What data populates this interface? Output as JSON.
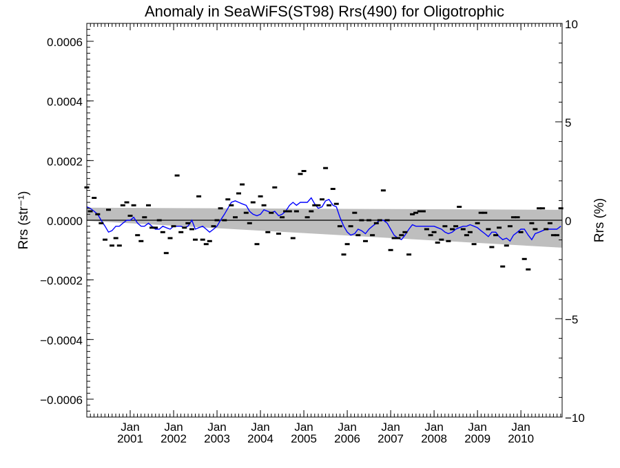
{
  "chart_data": {
    "type": "scatter",
    "title": "Anomaly in SeaWiFS(ST98) Rrs(490) for Oligotrophic",
    "ylabel_left": "Rrs (str⁻¹)",
    "ylabel_right": "Rrs (%)",
    "xlabel": "",
    "xlim": [
      2000.0,
      2010.95
    ],
    "ylim": [
      -0.00066,
      0.00066
    ],
    "ylim_right": [
      -10,
      10
    ],
    "grid": false,
    "x_ticks": [
      {
        "x": 2001.0,
        "line1": "Jan",
        "line2": "2001"
      },
      {
        "x": 2002.0,
        "line1": "Jan",
        "line2": "2002"
      },
      {
        "x": 2003.0,
        "line1": "Jan",
        "line2": "2003"
      },
      {
        "x": 2004.0,
        "line1": "Jan",
        "line2": "2004"
      },
      {
        "x": 2005.0,
        "line1": "Jan",
        "line2": "2005"
      },
      {
        "x": 2006.0,
        "line1": "Jan",
        "line2": "2006"
      },
      {
        "x": 2007.0,
        "line1": "Jan",
        "line2": "2007"
      },
      {
        "x": 2008.0,
        "line1": "Jan",
        "line2": "2008"
      },
      {
        "x": 2009.0,
        "line1": "Jan",
        "line2": "2009"
      },
      {
        "x": 2010.0,
        "line1": "Jan",
        "line2": "2010"
      }
    ],
    "y_ticks_left": [
      {
        "value": 0.0006,
        "label": "0.0006"
      },
      {
        "value": 0.0004,
        "label": "0.0004"
      },
      {
        "value": 0.0002,
        "label": "0.0002"
      },
      {
        "value": 0.0,
        "label": "0.0000"
      },
      {
        "value": -0.0002,
        "label": "−0.0002"
      },
      {
        "value": -0.0004,
        "label": "−0.0004"
      },
      {
        "value": -0.0006,
        "label": "−0.0006"
      }
    ],
    "y_ticks_right": [
      {
        "value": 10,
        "label": "10"
      },
      {
        "value": 5,
        "label": "5"
      },
      {
        "value": 0,
        "label": "0"
      },
      {
        "value": -5,
        "label": "−5"
      },
      {
        "value": -10,
        "label": "−10"
      }
    ],
    "zero_line": 0.0,
    "band": {
      "color": "#bebebe",
      "x": [
        2000.0,
        2010.95
      ],
      "upper": [
        4.2e-05,
        3.5e-05
      ],
      "lower": [
        -2e-06,
        -9.2e-05
      ]
    },
    "series": [
      {
        "kind": "points",
        "color": "#000000",
        "points": [
          [
            2000.0,
            0.00011
          ],
          [
            2000.08,
            3e-05
          ],
          [
            2000.17,
            7.5e-05
          ],
          [
            2000.25,
            2e-05
          ],
          [
            2000.33,
            -1e-05
          ],
          [
            2000.42,
            -6.5e-05
          ],
          [
            2000.5,
            3.5e-05
          ],
          [
            2000.58,
            -8.5e-05
          ],
          [
            2000.67,
            -6e-05
          ],
          [
            2000.75,
            -8.5e-05
          ],
          [
            2000.83,
            5e-05
          ],
          [
            2000.92,
            6e-05
          ],
          [
            2001.0,
            1.5e-05
          ],
          [
            2001.08,
            5e-05
          ],
          [
            2001.17,
            -5e-05
          ],
          [
            2001.25,
            -7e-05
          ],
          [
            2001.33,
            1e-05
          ],
          [
            2001.42,
            5e-05
          ],
          [
            2001.5,
            -2.5e-05
          ],
          [
            2001.58,
            -2.5e-05
          ],
          [
            2001.67,
            0.0
          ],
          [
            2001.75,
            -4e-05
          ],
          [
            2001.83,
            -0.00011
          ],
          [
            2001.92,
            -6e-05
          ],
          [
            2002.0,
            -2e-05
          ],
          [
            2002.08,
            0.00015
          ],
          [
            2002.17,
            -4e-05
          ],
          [
            2002.25,
            -2.5e-05
          ],
          [
            2002.33,
            -1e-05
          ],
          [
            2002.42,
            -3e-05
          ],
          [
            2002.5,
            -6.5e-05
          ],
          [
            2002.58,
            8e-05
          ],
          [
            2002.67,
            -6.5e-05
          ],
          [
            2002.75,
            -8e-05
          ],
          [
            2002.83,
            -7e-05
          ],
          [
            2002.92,
            -2e-05
          ],
          [
            2003.0,
            0.0
          ],
          [
            2003.08,
            4e-05
          ],
          [
            2003.17,
            0.0
          ],
          [
            2003.25,
            7e-05
          ],
          [
            2003.33,
            5e-05
          ],
          [
            2003.42,
            1e-05
          ],
          [
            2003.5,
            9e-05
          ],
          [
            2003.58,
            0.00012
          ],
          [
            2003.67,
            2.5e-05
          ],
          [
            2003.75,
            -1e-05
          ],
          [
            2003.83,
            6e-05
          ],
          [
            2003.92,
            -8e-05
          ],
          [
            2004.0,
            8e-05
          ],
          [
            2004.08,
            5e-05
          ],
          [
            2004.17,
            -4e-05
          ],
          [
            2004.25,
            2.5e-05
          ],
          [
            2004.33,
            0.00011
          ],
          [
            2004.42,
            -4.5e-05
          ],
          [
            2004.5,
            1e-05
          ],
          [
            2004.58,
            3e-05
          ],
          [
            2004.67,
            3e-05
          ],
          [
            2004.75,
            -6e-05
          ],
          [
            2004.83,
            3e-05
          ],
          [
            2004.92,
            0.000155
          ],
          [
            2005.0,
            0.000165
          ],
          [
            2005.08,
            1e-05
          ],
          [
            2005.17,
            3e-05
          ],
          [
            2005.25,
            5e-05
          ],
          [
            2005.33,
            5e-05
          ],
          [
            2005.42,
            7e-05
          ],
          [
            2005.5,
            0.000175
          ],
          [
            2005.58,
            5e-05
          ],
          [
            2005.67,
            0.000105
          ],
          [
            2005.75,
            5.5e-05
          ],
          [
            2005.83,
            -2e-05
          ],
          [
            2005.92,
            -0.000115
          ],
          [
            2006.0,
            -8e-05
          ],
          [
            2006.08,
            -2e-05
          ],
          [
            2006.17,
            2.5e-05
          ],
          [
            2006.25,
            -5e-05
          ],
          [
            2006.33,
            0.0
          ],
          [
            2006.42,
            -7e-05
          ],
          [
            2006.5,
            0.0
          ],
          [
            2006.58,
            -5e-05
          ],
          [
            2006.67,
            -1e-05
          ],
          [
            2006.75,
            0.0
          ],
          [
            2006.83,
            0.0001
          ],
          [
            2006.92,
            0.0
          ],
          [
            2007.0,
            -0.0001
          ],
          [
            2007.08,
            -6e-05
          ],
          [
            2007.17,
            -6e-05
          ],
          [
            2007.25,
            -5e-05
          ],
          [
            2007.33,
            -4e-05
          ],
          [
            2007.42,
            -0.000115
          ],
          [
            2007.5,
            2e-05
          ],
          [
            2007.58,
            2.5e-05
          ],
          [
            2007.67,
            3e-05
          ],
          [
            2007.75,
            3e-05
          ],
          [
            2007.83,
            -3e-05
          ],
          [
            2007.92,
            -5e-05
          ],
          [
            2008.0,
            -4e-05
          ],
          [
            2008.08,
            -7.5e-05
          ],
          [
            2008.17,
            -6.5e-05
          ],
          [
            2008.25,
            -2e-05
          ],
          [
            2008.33,
            -7e-05
          ],
          [
            2008.42,
            -3e-05
          ],
          [
            2008.5,
            -2e-05
          ],
          [
            2008.58,
            4.5e-05
          ],
          [
            2008.67,
            -3e-05
          ],
          [
            2008.75,
            -5e-05
          ],
          [
            2008.83,
            -4e-05
          ],
          [
            2008.92,
            -8e-05
          ],
          [
            2009.0,
            -1e-05
          ],
          [
            2009.08,
            2.5e-05
          ],
          [
            2009.17,
            2.5e-05
          ],
          [
            2009.25,
            -3e-05
          ],
          [
            2009.33,
            -9e-05
          ],
          [
            2009.42,
            -5e-05
          ],
          [
            2009.5,
            -2.5e-05
          ],
          [
            2009.58,
            -0.000155
          ],
          [
            2009.67,
            -8.5e-05
          ],
          [
            2009.75,
            -2e-05
          ],
          [
            2009.83,
            1e-05
          ],
          [
            2009.92,
            1e-05
          ],
          [
            2010.0,
            -4e-05
          ],
          [
            2010.08,
            -0.00013
          ],
          [
            2010.17,
            -0.000165
          ],
          [
            2010.25,
            -1e-05
          ],
          [
            2010.33,
            -3e-05
          ],
          [
            2010.42,
            4e-05
          ],
          [
            2010.5,
            4e-05
          ],
          [
            2010.58,
            -3e-05
          ],
          [
            2010.67,
            -1e-05
          ],
          [
            2010.75,
            -5e-05
          ],
          [
            2010.83,
            -5e-05
          ],
          [
            2010.92,
            4e-05
          ]
        ]
      },
      {
        "kind": "line",
        "color": "#0000ff",
        "points": [
          [
            2000.0,
            4.5e-05
          ],
          [
            2000.08,
            4e-05
          ],
          [
            2000.17,
            3e-05
          ],
          [
            2000.25,
            2e-05
          ],
          [
            2000.33,
            0.0
          ],
          [
            2000.42,
            -2e-05
          ],
          [
            2000.5,
            -4e-05
          ],
          [
            2000.58,
            -3.5e-05
          ],
          [
            2000.67,
            -2e-05
          ],
          [
            2000.75,
            -2e-05
          ],
          [
            2000.83,
            -1e-05
          ],
          [
            2000.92,
            0.0
          ],
          [
            2001.0,
            0.0
          ],
          [
            2001.08,
            1e-05
          ],
          [
            2001.17,
            -1e-05
          ],
          [
            2001.25,
            -2e-05
          ],
          [
            2001.33,
            -2e-05
          ],
          [
            2001.42,
            -1e-05
          ],
          [
            2001.5,
            -2e-05
          ],
          [
            2001.58,
            -3e-05
          ],
          [
            2001.67,
            -3e-05
          ],
          [
            2001.75,
            -2e-05
          ],
          [
            2001.83,
            -2.5e-05
          ],
          [
            2001.92,
            -3e-05
          ],
          [
            2002.0,
            -2e-05
          ],
          [
            2002.08,
            -2e-05
          ],
          [
            2002.17,
            -2e-05
          ],
          [
            2002.25,
            -2.5e-05
          ],
          [
            2002.33,
            -2e-05
          ],
          [
            2002.42,
            0.0
          ],
          [
            2002.5,
            -3e-05
          ],
          [
            2002.58,
            -2.5e-05
          ],
          [
            2002.67,
            -2e-05
          ],
          [
            2002.75,
            -3e-05
          ],
          [
            2002.83,
            -4e-05
          ],
          [
            2002.92,
            -3e-05
          ],
          [
            2003.0,
            -2e-05
          ],
          [
            2003.08,
            0.0
          ],
          [
            2003.17,
            2e-05
          ],
          [
            2003.25,
            4e-05
          ],
          [
            2003.33,
            6e-05
          ],
          [
            2003.42,
            6.5e-05
          ],
          [
            2003.5,
            6e-05
          ],
          [
            2003.58,
            5.5e-05
          ],
          [
            2003.67,
            5e-05
          ],
          [
            2003.75,
            3e-05
          ],
          [
            2003.83,
            2e-05
          ],
          [
            2003.92,
            1.5e-05
          ],
          [
            2004.0,
            2e-05
          ],
          [
            2004.08,
            3.5e-05
          ],
          [
            2004.17,
            3e-05
          ],
          [
            2004.25,
            2.5e-05
          ],
          [
            2004.33,
            3e-05
          ],
          [
            2004.42,
            1.5e-05
          ],
          [
            2004.5,
            2e-05
          ],
          [
            2004.58,
            3e-05
          ],
          [
            2004.67,
            5e-05
          ],
          [
            2004.75,
            6e-05
          ],
          [
            2004.83,
            5e-05
          ],
          [
            2004.92,
            6e-05
          ],
          [
            2005.0,
            6e-05
          ],
          [
            2005.08,
            6e-05
          ],
          [
            2005.17,
            7.5e-05
          ],
          [
            2005.25,
            5.5e-05
          ],
          [
            2005.33,
            4e-05
          ],
          [
            2005.42,
            4.5e-05
          ],
          [
            2005.5,
            6.5e-05
          ],
          [
            2005.58,
            7e-05
          ],
          [
            2005.67,
            5e-05
          ],
          [
            2005.75,
            4.5e-05
          ],
          [
            2005.83,
            1e-05
          ],
          [
            2005.92,
            -2e-05
          ],
          [
            2006.0,
            -4e-05
          ],
          [
            2006.08,
            -5e-05
          ],
          [
            2006.17,
            -4.5e-05
          ],
          [
            2006.25,
            -3e-05
          ],
          [
            2006.33,
            -3.5e-05
          ],
          [
            2006.42,
            -4.5e-05
          ],
          [
            2006.5,
            -3e-05
          ],
          [
            2006.58,
            -2e-05
          ],
          [
            2006.67,
            -1e-05
          ],
          [
            2006.75,
            0.0
          ],
          [
            2006.83,
            0.0
          ],
          [
            2006.92,
            -1e-05
          ],
          [
            2007.0,
            -3e-05
          ],
          [
            2007.08,
            -5e-05
          ],
          [
            2007.17,
            -6e-05
          ],
          [
            2007.25,
            -6.5e-05
          ],
          [
            2007.33,
            -5e-05
          ],
          [
            2007.42,
            -3e-05
          ],
          [
            2007.5,
            -1.5e-05
          ],
          [
            2007.58,
            -2e-05
          ],
          [
            2007.67,
            -2e-05
          ],
          [
            2007.75,
            -2e-05
          ],
          [
            2007.83,
            -2e-05
          ],
          [
            2007.92,
            -2e-05
          ],
          [
            2008.0,
            -2e-05
          ],
          [
            2008.08,
            -2.5e-05
          ],
          [
            2008.17,
            -3e-05
          ],
          [
            2008.25,
            -4e-05
          ],
          [
            2008.33,
            -4.5e-05
          ],
          [
            2008.42,
            -4e-05
          ],
          [
            2008.5,
            -3e-05
          ],
          [
            2008.58,
            -2.5e-05
          ],
          [
            2008.67,
            -2e-05
          ],
          [
            2008.75,
            -2e-05
          ],
          [
            2008.83,
            -1.5e-05
          ],
          [
            2008.92,
            -2e-05
          ],
          [
            2009.0,
            -2.5e-05
          ],
          [
            2009.08,
            -3.5e-05
          ],
          [
            2009.17,
            -4.5e-05
          ],
          [
            2009.25,
            -5.5e-05
          ],
          [
            2009.33,
            -4e-05
          ],
          [
            2009.42,
            -4e-05
          ],
          [
            2009.5,
            -5.5e-05
          ],
          [
            2009.58,
            -6.5e-05
          ],
          [
            2009.67,
            -6e-05
          ],
          [
            2009.75,
            -7e-05
          ],
          [
            2009.83,
            -5e-05
          ],
          [
            2009.92,
            -4e-05
          ],
          [
            2010.0,
            -3e-05
          ],
          [
            2010.08,
            -3e-05
          ],
          [
            2010.17,
            -5e-05
          ],
          [
            2010.25,
            -6.5e-05
          ],
          [
            2010.33,
            -4.5e-05
          ],
          [
            2010.42,
            -4e-05
          ],
          [
            2010.5,
            -3.5e-05
          ],
          [
            2010.58,
            -3e-05
          ],
          [
            2010.67,
            -3e-05
          ],
          [
            2010.75,
            -3e-05
          ],
          [
            2010.83,
            -3e-05
          ],
          [
            2010.92,
            -2e-05
          ]
        ]
      }
    ]
  }
}
